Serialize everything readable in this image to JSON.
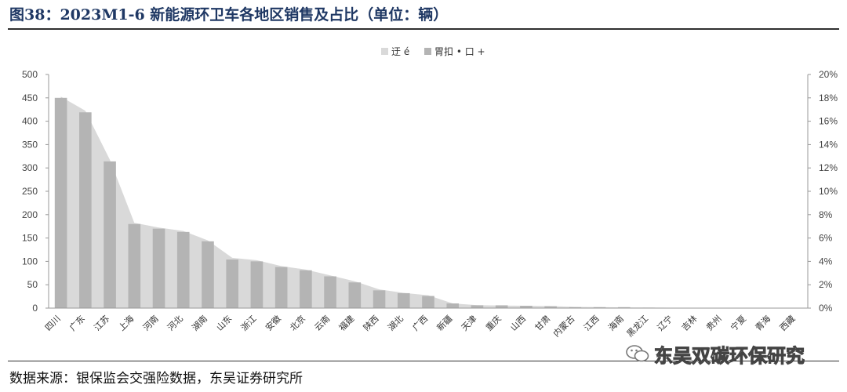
{
  "figure": {
    "title": "图38：2023M1-6 新能源环卫车各地区销售及占比（单位：辆）",
    "source": "数据来源：银保监会交强险数据，东吴证券研究所",
    "watermark": "东吴双碳环保研究"
  },
  "chart_data": {
    "type": "bar",
    "categories": [
      "四川",
      "广东",
      "江苏",
      "上海",
      "河南",
      "河北",
      "湖南",
      "山东",
      "浙江",
      "安徽",
      "北京",
      "云南",
      "福建",
      "陕西",
      "湖北",
      "广西",
      "新疆",
      "天津",
      "重庆",
      "山西",
      "甘肃",
      "内蒙古",
      "江西",
      "海南",
      "黑龙江",
      "辽宁",
      "吉林",
      "贵州",
      "宁夏",
      "青海",
      "西藏"
    ],
    "series": [
      {
        "name": "迂 é",
        "kind": "area",
        "axis": "right",
        "color": "#d9d9d9",
        "values": [
          18.1,
          16.9,
          12.7,
          7.3,
          6.9,
          6.6,
          5.8,
          4.3,
          4.1,
          3.6,
          3.3,
          2.8,
          2.3,
          1.6,
          1.3,
          1.1,
          0.4,
          0.25,
          0.22,
          0.2,
          0.18,
          0.1,
          0.08,
          0.06,
          0.05,
          0.03,
          0.02,
          0.01,
          0.0,
          0.0,
          0.0
        ]
      },
      {
        "name": "胃扣 • 口 +",
        "kind": "bar",
        "axis": "left",
        "color": "#b4b4b4",
        "values": [
          450,
          419,
          314,
          180,
          170,
          163,
          143,
          104,
          100,
          88,
          81,
          68,
          55,
          38,
          32,
          26,
          10,
          6,
          6,
          5,
          4,
          2,
          2,
          2,
          1,
          0,
          0,
          0,
          0,
          0,
          0
        ]
      }
    ],
    "y_left": {
      "min": 0,
      "max": 500,
      "ticks": [
        0,
        50,
        100,
        150,
        200,
        250,
        300,
        350,
        400,
        450,
        500
      ]
    },
    "y_right": {
      "min": 0,
      "max": 20,
      "ticks": [
        "0%",
        "2%",
        "4%",
        "6%",
        "8%",
        "10%",
        "12%",
        "14%",
        "16%",
        "18%",
        "20%"
      ]
    },
    "legend_position": "top-center",
    "grid": false
  }
}
